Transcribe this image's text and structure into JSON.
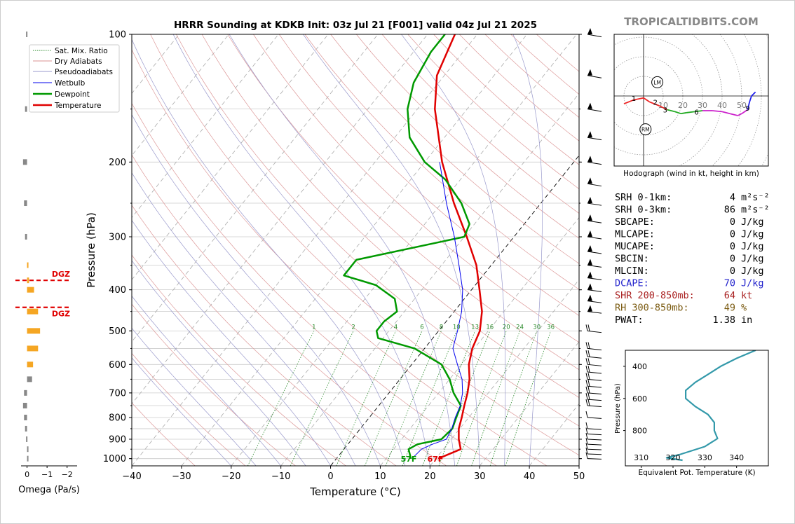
{
  "site_label": "TROPICALTIDBITS.COM",
  "chart_data": [
    {
      "type": "line",
      "title": "HRRR Sounding at KDKB Init: 03z Jul 21 [F001] valid 04z Jul 21 2025",
      "xlabel": "Temperature (°C)",
      "ylabel": "Pressure (hPa)",
      "xlim": [
        -40,
        50
      ],
      "ylim": [
        1040,
        100
      ],
      "xticks": [
        "−40",
        "−30",
        "−20",
        "−10",
        "0",
        "10",
        "20",
        "30",
        "40",
        "50"
      ],
      "yticks": [
        "100",
        "200",
        "300",
        "400",
        "500",
        "600",
        "700",
        "800",
        "900",
        "1000"
      ],
      "legend": [
        "Sat. Mix. Ratio",
        "Dry Adiabats",
        "Pseudoadiabats",
        "Wetbulb",
        "Dewpoint",
        "Temperature"
      ],
      "legend_position": "top-left",
      "mixing_ratio_labels": [
        "1",
        "2",
        "4",
        "6",
        "8",
        "10",
        "13",
        "16",
        "20",
        "24",
        "30",
        "36"
      ],
      "surface_labels": {
        "dewpoint": "57F",
        "temperature": "67F"
      },
      "series": [
        {
          "name": "Temperature",
          "color": "#e00000",
          "points": [
            [
              1000,
              20.5
            ],
            [
              950,
              23.5
            ],
            [
              900,
              21.5
            ],
            [
              850,
              19.8
            ],
            [
              800,
              18.6
            ],
            [
              750,
              17.2
            ],
            [
              700,
              15.8
            ],
            [
              650,
              14.0
            ],
            [
              600,
              11.5
            ],
            [
              550,
              9.6
            ],
            [
              500,
              8.3
            ],
            [
              450,
              5.6
            ],
            [
              400,
              1.6
            ],
            [
              350,
              -3.0
            ],
            [
              300,
              -9.5
            ],
            [
              250,
              -17.5
            ],
            [
              200,
              -26.5
            ],
            [
              150,
              -36.5
            ],
            [
              125,
              -41.5
            ],
            [
              100,
              -44.5
            ]
          ]
        },
        {
          "name": "Dewpoint",
          "color": "#009900",
          "points": [
            [
              1000,
              15.0
            ],
            [
              950,
              13.0
            ],
            [
              925,
              14.0
            ],
            [
              900,
              18.0
            ],
            [
              850,
              18.5
            ],
            [
              800,
              17.5
            ],
            [
              750,
              16.5
            ],
            [
              700,
              13.0
            ],
            [
              650,
              10.0
            ],
            [
              600,
              6.0
            ],
            [
              550,
              -2.0
            ],
            [
              520,
              -11.0
            ],
            [
              500,
              -12.5
            ],
            [
              475,
              -12.5
            ],
            [
              450,
              -11.5
            ],
            [
              420,
              -14.0
            ],
            [
              390,
              -20.0
            ],
            [
              370,
              -28.0
            ],
            [
              340,
              -28.0
            ],
            [
              300,
              -10.0
            ],
            [
              280,
              -11.0
            ],
            [
              250,
              -16.0
            ],
            [
              220,
              -23.0
            ],
            [
              200,
              -30.0
            ],
            [
              175,
              -37.0
            ],
            [
              150,
              -42.0
            ],
            [
              130,
              -45.0
            ],
            [
              110,
              -46.5
            ],
            [
              100,
              -46.5
            ]
          ]
        },
        {
          "name": "Wetbulb",
          "color": "#0000ee",
          "points": [
            [
              1000,
              15.2
            ],
            [
              950,
              15.6
            ],
            [
              925,
              17.0
            ],
            [
              900,
              19.0
            ],
            [
              850,
              18.4
            ],
            [
              800,
              17.3
            ],
            [
              750,
              16.4
            ],
            [
              700,
              14.8
            ],
            [
              650,
              12.5
            ],
            [
              600,
              9.2
            ],
            [
              550,
              5.7
            ],
            [
              500,
              3.8
            ],
            [
              450,
              1.5
            ],
            [
              400,
              -1.8
            ],
            [
              350,
              -6.5
            ],
            [
              300,
              -12.0
            ],
            [
              250,
              -19.0
            ],
            [
              200,
              -27.0
            ]
          ]
        }
      ]
    },
    {
      "type": "line",
      "title": "Hodograph (wind in kt, height in km)",
      "rings": [
        "10",
        "20",
        "30",
        "40",
        "50"
      ],
      "markers": [
        "LM",
        "RM"
      ],
      "height_labels": [
        "1",
        "2",
        "3",
        "6",
        "9"
      ],
      "points": [
        [
          -10,
          -4
        ],
        [
          -5,
          -2
        ],
        [
          0,
          -1
        ],
        [
          3,
          -3
        ],
        [
          8,
          -5
        ],
        [
          12,
          -7
        ],
        [
          16,
          -8
        ],
        [
          19,
          -9
        ],
        [
          22,
          -8.5
        ],
        [
          26,
          -8
        ],
        [
          30,
          -7.5
        ],
        [
          35,
          -7.5
        ],
        [
          40,
          -8
        ],
        [
          44,
          -9
        ],
        [
          48,
          -10
        ],
        [
          50,
          -9
        ],
        [
          53,
          -7
        ],
        [
          54,
          -3
        ],
        [
          55,
          0
        ],
        [
          57,
          2
        ]
      ],
      "storm_motion": {
        "LM": [
          7,
          7
        ],
        "RM": [
          1,
          -17
        ]
      }
    },
    {
      "type": "line",
      "xlabel": "Equivalent Pot. Temperature (K)",
      "ylabel": "Pressure (hPa)",
      "xlim": [
        305,
        350
      ],
      "ylim": [
        1020,
        300
      ],
      "xticks": [
        "310",
        "320",
        "330",
        "340"
      ],
      "yticks": [
        "400",
        "600",
        "800"
      ],
      "points": [
        [
          985,
          323
        ],
        [
          970,
          318
        ],
        [
          950,
          322
        ],
        [
          900,
          330
        ],
        [
          850,
          334
        ],
        [
          800,
          333
        ],
        [
          750,
          333
        ],
        [
          700,
          331
        ],
        [
          650,
          327
        ],
        [
          600,
          324
        ],
        [
          550,
          324
        ],
        [
          500,
          327
        ],
        [
          450,
          331
        ],
        [
          400,
          335
        ],
        [
          350,
          340
        ],
        [
          300,
          346
        ]
      ]
    },
    {
      "type": "bar",
      "xlabel": "Omega (Pa/s)",
      "xlim": [
        0.3,
        -2.5
      ],
      "xticks": [
        "0",
        "−1",
        "−2"
      ],
      "dgz_label": "DGZ",
      "dgz_bounds": [
        380,
        440
      ],
      "bars": [
        [
          100,
          0.05
        ],
        [
          150,
          0.1
        ],
        [
          200,
          0.2
        ],
        [
          250,
          0.15
        ],
        [
          300,
          0.1
        ],
        [
          350,
          -0.05
        ],
        [
          380,
          -0.1
        ],
        [
          400,
          -0.35
        ],
        [
          450,
          -0.55
        ],
        [
          500,
          -0.65
        ],
        [
          550,
          -0.55
        ],
        [
          600,
          -0.3
        ],
        [
          650,
          -0.25
        ],
        [
          700,
          0.15
        ],
        [
          750,
          0.2
        ],
        [
          800,
          0.15
        ],
        [
          850,
          0.1
        ],
        [
          900,
          0.05
        ],
        [
          950,
          -0.05
        ],
        [
          1000,
          -0.02
        ]
      ]
    }
  ],
  "indices": [
    {
      "label": "SRH 0-1km:",
      "value": "4",
      "unit": "m²s⁻²",
      "color": "#000000"
    },
    {
      "label": "SRH 0-3km:",
      "value": "86",
      "unit": "m²s⁻²",
      "color": "#000000"
    },
    {
      "label": "SBCAPE:",
      "value": "0",
      "unit": "J/kg",
      "color": "#000000"
    },
    {
      "label": "MLCAPE:",
      "value": "0",
      "unit": "J/kg",
      "color": "#000000"
    },
    {
      "label": "MUCAPE:",
      "value": "0",
      "unit": "J/kg",
      "color": "#000000"
    },
    {
      "label": "SBCIN:",
      "value": "0",
      "unit": "J/kg",
      "color": "#000000"
    },
    {
      "label": "MLCIN:",
      "value": "0",
      "unit": "J/kg",
      "color": "#000000"
    },
    {
      "label": "DCAPE:",
      "value": "70",
      "unit": "J/kg",
      "color": "#2222cc"
    },
    {
      "label": "SHR 200-850mb:",
      "value": "64",
      "unit": "kt",
      "color": "#aa2222"
    },
    {
      "label": "RH 300-850mb:",
      "value": "49",
      "unit": "%",
      "color": "#7a5a10"
    },
    {
      "label": "PWAT:",
      "value": "1.38",
      "unit": "in",
      "color": "#000000"
    }
  ]
}
